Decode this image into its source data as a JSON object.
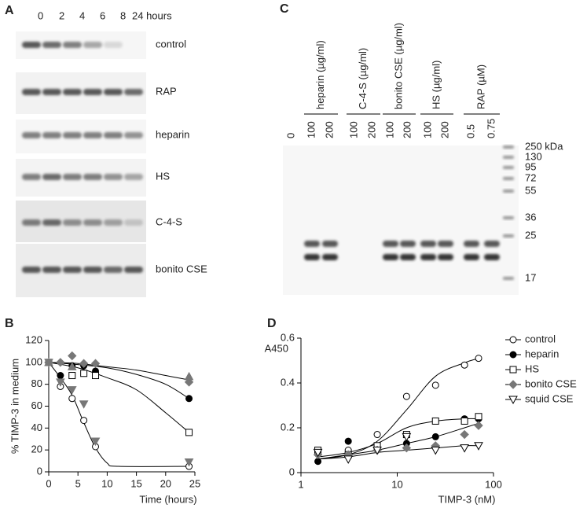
{
  "panel_labels": [
    "A",
    "B",
    "C",
    "D"
  ],
  "panel_a": {
    "lanes": [
      "0",
      "2",
      "4",
      "6",
      "8",
      "24 hours"
    ],
    "rows": [
      "control",
      "RAP",
      "heparin",
      "HS",
      "C-4-S",
      "bonito CSE"
    ]
  },
  "panel_c": {
    "lanes": [
      "0",
      "100",
      "200",
      "100",
      "200",
      "100",
      "200",
      "100",
      "200",
      "0.5",
      "0.75"
    ],
    "groups": [
      "heparin (µg/ml)",
      "C-4-S (µg/ml)",
      "bonito CSE (µg/ml)",
      "HS (µg/ml)",
      "RAP (µM)"
    ],
    "markers": [
      "250 kDa",
      "130",
      "95",
      "72",
      "55",
      "36",
      "25",
      "17"
    ]
  },
  "chart_data": [
    {
      "type": "scatter",
      "y_label": "% TIMP-3 in medium",
      "x_label": "Time (hours)",
      "x": [
        0,
        2,
        4,
        6,
        8,
        24
      ],
      "xlim": [
        0,
        25
      ],
      "xticks": [
        0,
        5,
        10,
        15,
        20,
        25
      ],
      "ylim": [
        0,
        120
      ],
      "yticks": [
        0,
        20,
        40,
        60,
        80,
        100,
        120
      ],
      "series": [
        {
          "marker": "circle-open",
          "color": "#000000",
          "values": [
            100,
            78,
            67,
            47,
            23,
            5
          ]
        },
        {
          "marker": "circle",
          "color": "#000000",
          "values": [
            100,
            88,
            97,
            97,
            92,
            67
          ]
        },
        {
          "marker": "square-open",
          "color": "#000000",
          "values": [
            100,
            null,
            88,
            90,
            88,
            36
          ]
        },
        {
          "marker": "diamond",
          "color": "#777777",
          "values": [
            100,
            100,
            106,
            99,
            99,
            82
          ]
        },
        {
          "marker": "triangle-down",
          "color": "#777777",
          "values": [
            100,
            82,
            75,
            62,
            28,
            9
          ]
        },
        {
          "marker": "triangle-up",
          "color": "#777777",
          "values": [
            100,
            null,
            96,
            null,
            null,
            87
          ]
        }
      ],
      "fits": [
        {
          "x": [
            0,
            5,
            10,
            15,
            20,
            24
          ],
          "values": [
            100,
            99,
            96,
            93,
            88,
            84
          ]
        },
        {
          "x": [
            0,
            5,
            10,
            15,
            20,
            24
          ],
          "values": [
            100,
            98,
            95,
            89,
            80,
            67
          ]
        },
        {
          "x": [
            0,
            5,
            10,
            15,
            20,
            24
          ],
          "values": [
            100,
            95,
            86,
            75,
            54,
            36
          ]
        },
        {
          "x": [
            0,
            2,
            4,
            6,
            8,
            10,
            12,
            24
          ],
          "values": [
            100,
            86,
            70,
            45,
            22,
            8,
            5,
            5
          ]
        }
      ]
    },
    {
      "type": "scatter",
      "y_label": "A450",
      "x_label": "TIMP-3 (nM)",
      "log_x": true,
      "legend": "right",
      "x": [
        1.5,
        3.1,
        6.2,
        12.5,
        25,
        50,
        70
      ],
      "xlim": [
        1,
        100
      ],
      "xticks": [
        1,
        10,
        100
      ],
      "ylim": [
        0,
        0.6
      ],
      "yticks": [
        0,
        0.2,
        0.4,
        0.6
      ],
      "series": [
        {
          "name": "control",
          "marker": "circle-open",
          "color": "#000000",
          "values": [
            0.09,
            0.1,
            0.17,
            0.34,
            0.39,
            0.48,
            0.51
          ]
        },
        {
          "name": "heparin",
          "marker": "circle",
          "color": "#000000",
          "values": [
            0.05,
            0.14,
            0.11,
            0.13,
            0.16,
            0.24,
            0.24
          ]
        },
        {
          "name": "HS",
          "marker": "square-open",
          "color": "#000000",
          "values": [
            0.1,
            0.08,
            0.12,
            0.17,
            0.23,
            0.23,
            0.25
          ]
        },
        {
          "name": "bonito CSE",
          "marker": "diamond",
          "color": "#777777",
          "values": [
            0.08,
            0.08,
            0.1,
            0.11,
            0.12,
            0.17,
            0.21
          ]
        },
        {
          "name": "squid CSE",
          "marker": "triangle-down-open",
          "color": "#000000",
          "values": [
            0.09,
            0.06,
            0.1,
            0.16,
            0.1,
            0.11,
            0.12
          ]
        }
      ],
      "fits": [
        {
          "x": [
            1.5,
            3.1,
            6.2,
            12.5,
            25,
            50,
            70
          ],
          "values": [
            0.06,
            0.08,
            0.14,
            0.28,
            0.43,
            0.49,
            0.51
          ]
        },
        {
          "x": [
            1.5,
            3.1,
            6.2,
            12.5,
            25,
            50,
            70
          ],
          "values": [
            0.07,
            0.09,
            0.13,
            0.2,
            0.23,
            0.24,
            0.24
          ]
        },
        {
          "x": [
            1.5,
            3.1,
            6.2,
            12.5,
            25,
            50,
            70
          ],
          "values": [
            0.06,
            0.08,
            0.1,
            0.13,
            0.16,
            0.2,
            0.22
          ]
        },
        {
          "x": [
            1.5,
            3.1,
            6.2,
            12.5,
            25,
            50,
            70
          ],
          "values": [
            0.06,
            0.07,
            0.09,
            0.1,
            0.11,
            0.12,
            0.12
          ]
        }
      ]
    }
  ]
}
